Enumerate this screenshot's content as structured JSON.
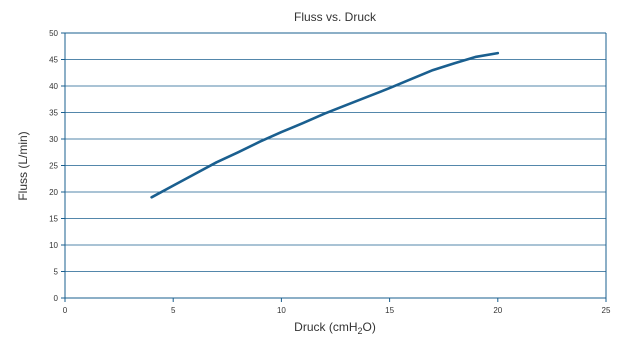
{
  "chart_data": {
    "type": "line",
    "title": "Fluss vs. Druck",
    "xlabel": "Druck (cmH2O)",
    "xlabel_parts": {
      "pre": "Druck (cmH",
      "sub": "2",
      "post": "O)"
    },
    "ylabel": "Fluss (L/min)",
    "xlim": [
      0,
      25
    ],
    "ylim": [
      0,
      50
    ],
    "xticks": [
      0,
      5,
      10,
      15,
      20,
      25
    ],
    "yticks": [
      0,
      5,
      10,
      15,
      20,
      25,
      30,
      35,
      40,
      45,
      50
    ],
    "grid": true,
    "legend": "none",
    "series": [
      {
        "color": "#1a5f8f",
        "x": [
          4,
          5,
          6,
          7,
          8,
          9,
          10,
          11,
          12,
          13,
          14,
          15,
          16,
          17,
          18,
          19,
          20
        ],
        "y": [
          19,
          21.2,
          23.4,
          25.6,
          27.5,
          29.5,
          31.3,
          33,
          34.8,
          36.4,
          38,
          39.6,
          41.3,
          43,
          44.3,
          45.5,
          46.2
        ]
      }
    ]
  }
}
